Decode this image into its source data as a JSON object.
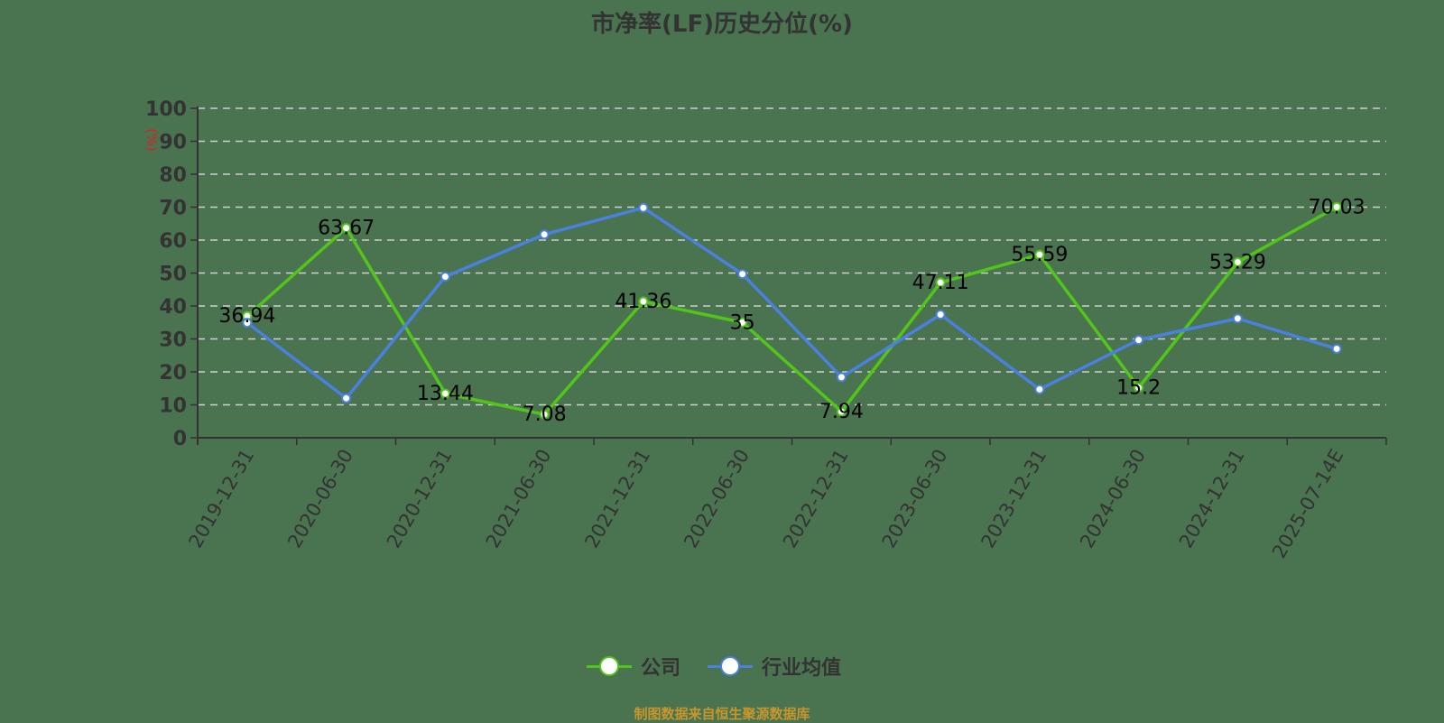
{
  "title": "市净率(LF)历史分位(%)",
  "source_note": "制图数据来自恒生聚源数据库",
  "colors": {
    "background": "#4a7350",
    "company": "#52c41a",
    "industry": "#4a80e0",
    "grid": "#d0d0d0",
    "axis": "#333333",
    "unit_label": "#e02020",
    "source": "#c8962c"
  },
  "legend": [
    {
      "label": "公司",
      "color": "#52c41a"
    },
    {
      "label": "行业均值",
      "color": "#4a80e0"
    }
  ],
  "chart_data": {
    "type": "line",
    "title": "市净率(LF)历史分位(%)",
    "xlabel": "",
    "ylabel": "(%)",
    "ylim": [
      0,
      100
    ],
    "yticks": [
      0,
      10,
      20,
      30,
      40,
      50,
      60,
      70,
      80,
      90,
      100
    ],
    "grid": true,
    "legend_position": "bottom",
    "categories": [
      "2019-12-31",
      "2020-06-30",
      "2020-12-31",
      "2021-06-30",
      "2021-12-31",
      "2022-06-30",
      "2022-12-31",
      "2023-06-30",
      "2023-12-31",
      "2024-06-30",
      "2024-12-31",
      "2025-07-14E"
    ],
    "series": [
      {
        "name": "公司",
        "values": [
          36.94,
          63.67,
          13.44,
          7.08,
          41.36,
          35,
          7.94,
          47.11,
          55.59,
          15.2,
          53.29,
          70.03
        ],
        "labels": [
          "36.94",
          "63.67",
          "13.44",
          "7.08",
          "41.36",
          "35",
          "7.94",
          "47.11",
          "55.59",
          "15.2",
          "53.29",
          "70.03"
        ]
      },
      {
        "name": "行业均值",
        "values": [
          34.9,
          12.0,
          48.9,
          61.7,
          69.8,
          49.7,
          18.4,
          37.4,
          14.7,
          29.7,
          36.2,
          27.0
        ]
      }
    ]
  }
}
